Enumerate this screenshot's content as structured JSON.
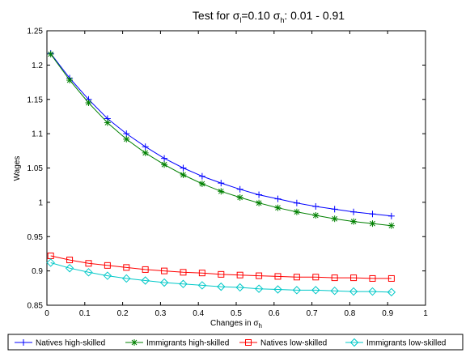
{
  "chart_data": {
    "type": "line",
    "title": "Test for σₗ=0.10 σₕ: 0.01 - 0.91",
    "title_parts": {
      "prefix": "Test for ",
      "sigma1": "σ",
      "sub1": "l",
      "mid": "=0.10 ",
      "sigma2": "σ",
      "sub2": "h",
      "suffix": ": 0.01 - 0.91"
    },
    "xlabel": "Changes in σh",
    "xlabel_parts": {
      "main": "Changes in ",
      "sigma": "σ",
      "sub": "h"
    },
    "ylabel": "Wages",
    "xlim": [
      0,
      1
    ],
    "ylim": [
      0.85,
      1.25
    ],
    "xticks": [
      "0",
      "0.1",
      "0.2",
      "0.3",
      "0.4",
      "0.5",
      "0.6",
      "0.7",
      "0.8",
      "0.9",
      "1"
    ],
    "xtick_values": [
      0,
      0.1,
      0.2,
      0.3,
      0.4,
      0.5,
      0.6,
      0.7,
      0.8,
      0.9,
      1
    ],
    "yticks": [
      "0.85",
      "0.9",
      "0.95",
      "1",
      "1.05",
      "1.1",
      "1.15",
      "1.2",
      "1.25"
    ],
    "ytick_values": [
      0.85,
      0.9,
      0.95,
      1,
      1.05,
      1.1,
      1.15,
      1.2,
      1.25
    ],
    "grid": false,
    "legend_position": "bottom",
    "x": [
      0.01,
      0.06,
      0.11,
      0.16,
      0.21,
      0.26,
      0.31,
      0.36,
      0.41,
      0.46,
      0.51,
      0.56,
      0.61,
      0.66,
      0.71,
      0.76,
      0.81,
      0.86,
      0.91
    ],
    "series": [
      {
        "name": "Natives high-skilled",
        "color": "#0000ff",
        "marker": "plus",
        "values": [
          1.217,
          1.181,
          1.15,
          1.122,
          1.1,
          1.081,
          1.064,
          1.05,
          1.038,
          1.028,
          1.019,
          1.011,
          1.005,
          0.999,
          0.994,
          0.99,
          0.986,
          0.983,
          0.98
        ]
      },
      {
        "name": "Immigrants high-skilled",
        "color": "#008000",
        "marker": "star",
        "values": [
          1.216,
          1.178,
          1.145,
          1.116,
          1.092,
          1.072,
          1.055,
          1.04,
          1.027,
          1.016,
          1.007,
          0.999,
          0.992,
          0.986,
          0.981,
          0.976,
          0.972,
          0.969,
          0.966
        ]
      },
      {
        "name": "Natives low-skilled",
        "color": "#ff0000",
        "marker": "square",
        "values": [
          0.922,
          0.916,
          0.911,
          0.908,
          0.905,
          0.902,
          0.9,
          0.898,
          0.897,
          0.895,
          0.894,
          0.893,
          0.892,
          0.891,
          0.891,
          0.89,
          0.89,
          0.889,
          0.889
        ]
      },
      {
        "name": "Immigrants low-skilled",
        "color": "#00c8c8",
        "marker": "diamond",
        "values": [
          0.912,
          0.904,
          0.898,
          0.893,
          0.889,
          0.886,
          0.883,
          0.881,
          0.879,
          0.877,
          0.876,
          0.874,
          0.873,
          0.872,
          0.872,
          0.871,
          0.87,
          0.87,
          0.869
        ]
      }
    ]
  }
}
